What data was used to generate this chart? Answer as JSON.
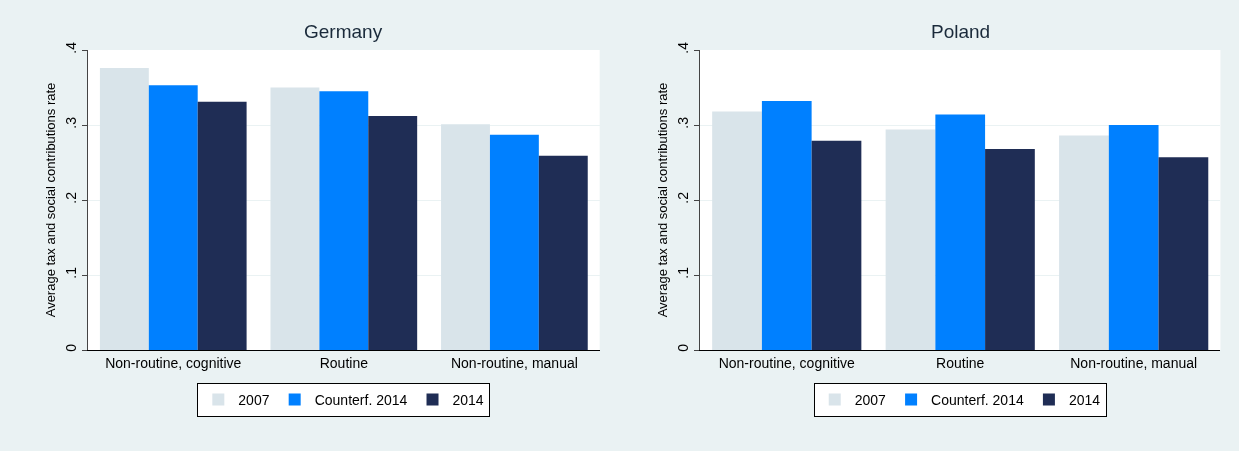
{
  "chart_data": [
    {
      "type": "bar",
      "title": "Germany",
      "ylabel": "Average tax and social contributions rate",
      "categories": [
        "Non-routine, cognitive",
        "Routine",
        "Non-routine, manual"
      ],
      "series": [
        {
          "name": "2007",
          "color": "#d9e4ea",
          "values": [
            0.376,
            0.35,
            0.301
          ]
        },
        {
          "name": "Counterf. 2014",
          "color": "#0080ff",
          "values": [
            0.353,
            0.345,
            0.287
          ]
        },
        {
          "name": "2014",
          "color": "#1f2d55",
          "values": [
            0.331,
            0.312,
            0.259
          ]
        }
      ],
      "ylim": [
        0,
        0.4
      ],
      "yticks": [
        {
          "value": 0,
          "label": "0"
        },
        {
          "value": 0.1,
          "label": ".1"
        },
        {
          "value": 0.2,
          "label": ".2"
        },
        {
          "value": 0.3,
          "label": ".3"
        },
        {
          "value": 0.4,
          "label": ".4"
        }
      ],
      "grid": "y",
      "legend": "bottom"
    },
    {
      "type": "bar",
      "title": "Poland",
      "ylabel": "Average tax and social contributions rate",
      "categories": [
        "Non-routine, cognitive",
        "Routine",
        "Non-routine, manual"
      ],
      "series": [
        {
          "name": "2007",
          "color": "#d9e4ea",
          "values": [
            0.318,
            0.294,
            0.286
          ]
        },
        {
          "name": "Counterf. 2014",
          "color": "#0080ff",
          "values": [
            0.332,
            0.314,
            0.3
          ]
        },
        {
          "name": "2014",
          "color": "#1f2d55",
          "values": [
            0.279,
            0.268,
            0.257
          ]
        }
      ],
      "ylim": [
        0,
        0.4
      ],
      "yticks": [
        {
          "value": 0,
          "label": "0"
        },
        {
          "value": 0.1,
          "label": ".1"
        },
        {
          "value": 0.2,
          "label": ".2"
        },
        {
          "value": 0.3,
          "label": ".3"
        },
        {
          "value": 0.4,
          "label": ".4"
        }
      ],
      "grid": "y",
      "legend": "bottom"
    }
  ]
}
